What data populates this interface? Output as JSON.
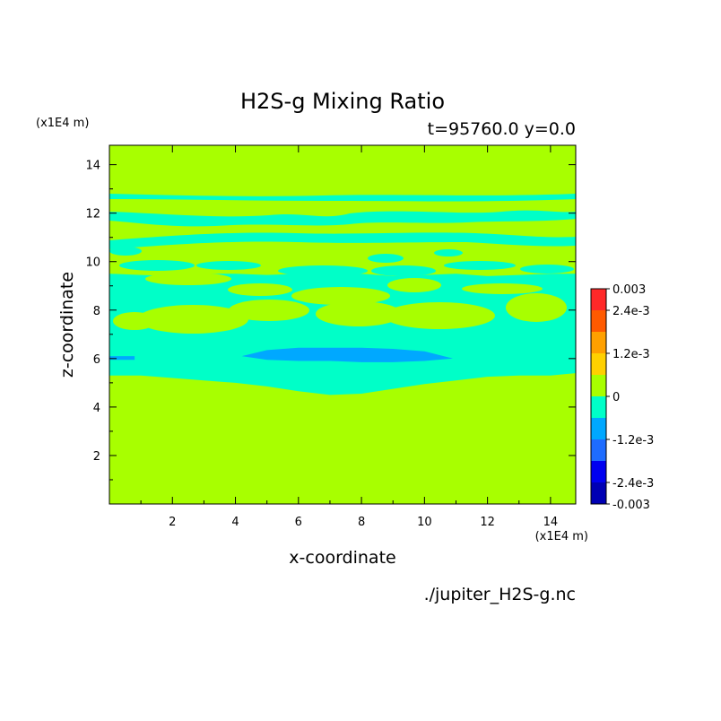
{
  "chart_data": {
    "type": "heatmap",
    "title": "H2S-g Mixing Ratio",
    "subtitle": "t=95760.0 y=0.0",
    "xlabel": "x-coordinate",
    "ylabel": "z-coordinate",
    "x_unit": "(x1E4 m)",
    "z_unit": "(x1E4 m)",
    "source_file": "./jupiter_H2S-g.nc",
    "xlim": [
      0,
      14.8
    ],
    "ylim": [
      0,
      14.8
    ],
    "x_ticks": [
      2,
      4,
      6,
      8,
      10,
      12,
      14
    ],
    "y_ticks": [
      2,
      4,
      6,
      8,
      10,
      12,
      14
    ],
    "colorbar": {
      "range": [
        -0.003,
        0.003
      ],
      "levels": [
        -0.003,
        -0.0024,
        -0.0018,
        -0.0012,
        -0.0006,
        0,
        0.0006,
        0.0012,
        0.0018,
        0.0024,
        0.003
      ],
      "colors": [
        "#0000b4",
        "#0000f0",
        "#1e6cff",
        "#00a8ff",
        "#00ffc8",
        "#a8ff00",
        "#ffd000",
        "#ffa000",
        "#ff5a00",
        "#ff2828"
      ],
      "tick_labels": [
        {
          "value": 0.003,
          "label": "0.003"
        },
        {
          "value": 0.0024,
          "label": "2.4e-3"
        },
        {
          "value": 0.0012,
          "label": "1.2e-3"
        },
        {
          "value": 0,
          "label": "0"
        },
        {
          "value": -0.0012,
          "label": "-1.2e-3"
        },
        {
          "value": -0.0024,
          "label": "-2.4e-3"
        },
        {
          "value": -0.003,
          "label": "-0.003"
        }
      ]
    },
    "background_color": "#a8ff00",
    "negative_region_color": "#00ffc8",
    "strong_negative_color": "#00a8ff",
    "regions": [
      {
        "name": "negative-layer-main",
        "color": "#00ffc8",
        "x": [
          0,
          1,
          2,
          3,
          4,
          5,
          6,
          7,
          8,
          9,
          10,
          11,
          12,
          13,
          14,
          14.8,
          14.8,
          14,
          13,
          12,
          11,
          10,
          9,
          8,
          7,
          6,
          5,
          4,
          3,
          2,
          1,
          0
        ],
        "z": [
          5.3,
          5.3,
          5.2,
          5.1,
          5.0,
          4.85,
          4.65,
          4.5,
          4.55,
          4.75,
          4.95,
          5.1,
          5.25,
          5.3,
          5.3,
          5.4,
          9.5,
          9.5,
          9.45,
          9.4,
          9.5,
          9.45,
          9.4,
          9.5,
          9.55,
          9.5,
          9.45,
          9.5,
          9.5,
          9.4,
          9.45,
          9.5
        ]
      },
      {
        "name": "strong-negative-band",
        "color": "#00a8ff",
        "x": [
          4.2,
          5,
          6,
          7,
          8,
          9,
          10,
          10.9,
          10,
          9,
          8,
          7,
          6,
          5
        ],
        "z": [
          6.1,
          6.35,
          6.45,
          6.45,
          6.45,
          6.4,
          6.3,
          6.0,
          5.9,
          5.85,
          5.85,
          5.9,
          5.9,
          5.95
        ]
      },
      {
        "name": "strong-negative-left",
        "color": "#00a8ff",
        "x": [
          0,
          0.8,
          0.8,
          0
        ],
        "z": [
          6.1,
          6.1,
          5.95,
          5.95
        ]
      }
    ]
  }
}
